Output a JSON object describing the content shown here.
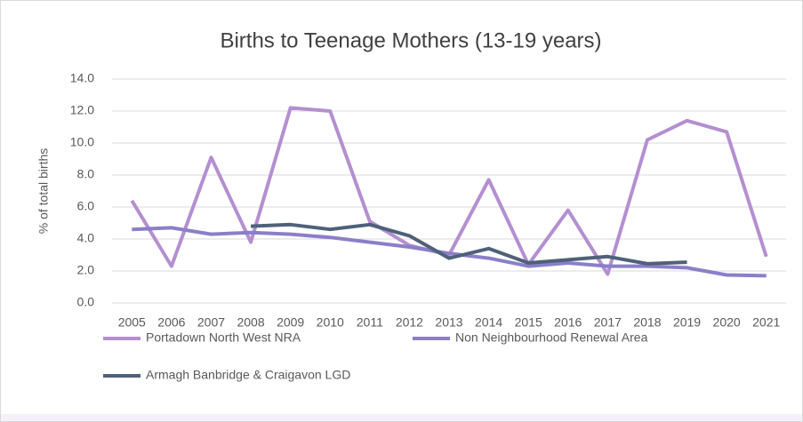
{
  "chart_data": {
    "type": "line",
    "title": "Births to Teenage Mothers (13-19 years)",
    "y_label": "% of total births",
    "categories": [
      "2005",
      "2006",
      "2007",
      "2008",
      "2009",
      "2010",
      "2011",
      "2012",
      "2013",
      "2014",
      "2015",
      "2016",
      "2017",
      "2018",
      "2019",
      "2020",
      "2021"
    ],
    "series": [
      {
        "name": "Portadown North West NRA",
        "color": "#b48fd0",
        "values": [
          6.4,
          2.3,
          9.1,
          3.8,
          12.2,
          12.0,
          5.1,
          3.6,
          3.0,
          7.7,
          2.4,
          5.8,
          1.8,
          10.2,
          11.4,
          10.7,
          2.9
        ]
      },
      {
        "name": "Non Neighbourhood Renewal Area",
        "color": "#8a7fc8",
        "values": [
          4.6,
          4.7,
          4.3,
          4.4,
          4.3,
          4.1,
          3.8,
          3.5,
          3.1,
          2.8,
          2.3,
          2.5,
          2.3,
          2.3,
          2.2,
          1.75,
          1.7
        ]
      },
      {
        "name": "Armagh Banbridge & Craigavon LGD",
        "color": "#4f6179",
        "values": [
          null,
          null,
          null,
          4.8,
          4.9,
          4.6,
          4.9,
          4.2,
          2.8,
          3.4,
          2.5,
          2.7,
          2.9,
          2.45,
          2.55,
          null,
          null
        ]
      }
    ],
    "ylim": [
      0,
      14
    ],
    "yticks": [
      {
        "value": 0,
        "label": "0.0"
      },
      {
        "value": 2,
        "label": "2.0"
      },
      {
        "value": 4,
        "label": "4.0"
      },
      {
        "value": 6,
        "label": "6.0"
      },
      {
        "value": 8,
        "label": "8.0"
      },
      {
        "value": 10,
        "label": "10.0"
      },
      {
        "value": 12,
        "label": "12.0"
      },
      {
        "value": 14,
        "label": "14.0"
      }
    ],
    "grid": true
  }
}
